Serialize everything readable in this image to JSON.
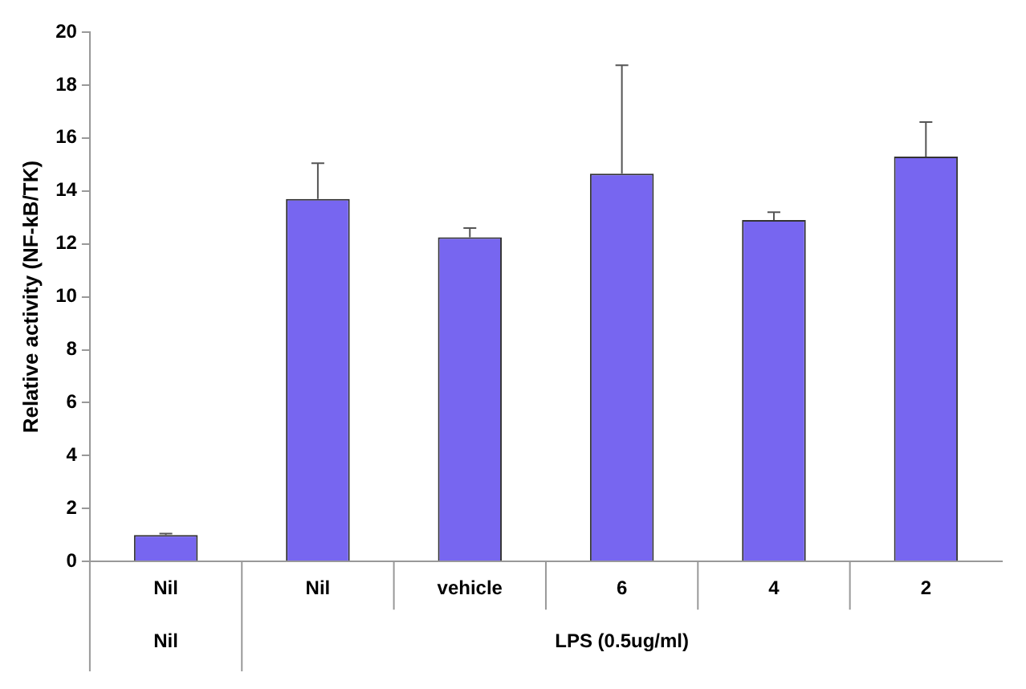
{
  "chart_data": {
    "type": "bar",
    "ylabel": "Relative activity (NF-kB/TK)",
    "categories": [
      "Nil",
      "Nil",
      "vehicle",
      "6",
      "4",
      "2"
    ],
    "values": [
      1.0,
      13.7,
      12.25,
      14.65,
      12.9,
      15.3
    ],
    "errors": [
      [
        1.0,
        1.05
      ],
      [
        13.7,
        15.05
      ],
      [
        12.25,
        12.6
      ],
      [
        14.65,
        18.75
      ],
      [
        12.9,
        13.2
      ],
      [
        15.3,
        16.6
      ]
    ],
    "color": "#7766f0",
    "ylim": [
      0,
      20
    ],
    "yticks": [
      0,
      2,
      4,
      6,
      8,
      10,
      12,
      14,
      16,
      18,
      20
    ],
    "grid": false,
    "legend": false,
    "annotations": [
      "Nil",
      "LPS (0.5ug/ml)"
    ]
  }
}
